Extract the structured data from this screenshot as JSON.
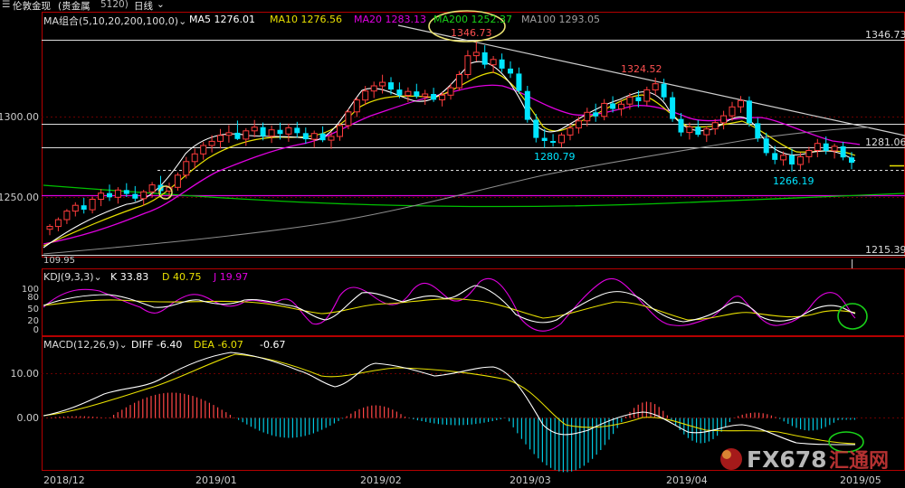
{
  "topbar": {
    "title": "伦敦金现",
    "market": "(贵金属",
    "code": "5120)",
    "period": "日线"
  },
  "main_legend": {
    "indicator": "MA组合(5,10,20,200,100,0)",
    "ma5": "MA5 1276.01",
    "ma10": "MA10 1276.56",
    "ma20": "MA20 1283.13",
    "ma200": "MA200 1252.37",
    "ma100": "MA100 1293.05"
  },
  "kdj_legend": {
    "indicator": "KDJ(9,3,3)",
    "k": "K 33.83",
    "d": "D 40.75",
    "j": "J 19.97"
  },
  "macd_legend": {
    "indicator": "MACD(12,26,9)",
    "diff": "DIFF -6.40",
    "dea": "DEA -6.07",
    "macd": "-0.67"
  },
  "annotations": {
    "high1": "1346.73",
    "high2": "1324.52",
    "low1": "1280.79",
    "low2": "1266.19",
    "start": "109.95"
  },
  "right_labels": {
    "r1": "1346.73",
    "r2": "1281.06",
    "r3": "1215.39"
  },
  "watermark": "FX678",
  "watermark_sub": "汇通网",
  "colors": {
    "up": "#ff3c3c",
    "down": "#00e5ff",
    "ma5": "#ffffff",
    "ma10": "#e8e000",
    "ma20": "#e000e0",
    "ma200": "#00c000",
    "ma100": "#a0a0a0",
    "grid": "#6a0000",
    "axis": "#b40000",
    "highlight": "#e8e070",
    "circle_green": "#19d219"
  },
  "chart_data": [
    {
      "type": "candlestick",
      "x_range": [
        "2018/12",
        "2019/05"
      ],
      "x_ticks": [
        "2018/12",
        "2019/01",
        "2019/02",
        "2019/03",
        "2019/04",
        "2019/05"
      ],
      "y_ticks": [
        1250,
        1300
      ],
      "y_tick_labels": [
        "1250.00",
        "1300.00"
      ],
      "ylim": [
        1213,
        1357
      ],
      "reference_lines": [
        1346.73,
        1281.06,
        1215.39
      ],
      "ohlc": [
        [
          1230.2,
          1233.4,
          1226.5,
          1232.0
        ],
        [
          1232.0,
          1237.6,
          1229.0,
          1236.2
        ],
        [
          1236.2,
          1242.8,
          1233.5,
          1241.5
        ],
        [
          1241.5,
          1247.0,
          1238.2,
          1245.1
        ],
        [
          1245.1,
          1249.8,
          1240.0,
          1242.4
        ],
        [
          1242.4,
          1250.5,
          1240.1,
          1248.9
        ],
        [
          1248.9,
          1255.3,
          1244.6,
          1252.7
        ],
        [
          1252.7,
          1258.0,
          1247.8,
          1250.1
        ],
        [
          1250.1,
          1256.4,
          1246.2,
          1254.6
        ],
        [
          1254.6,
          1258.9,
          1250.3,
          1252.2
        ],
        [
          1252.2,
          1257.1,
          1247.5,
          1249.3
        ],
        [
          1249.3,
          1254.8,
          1245.0,
          1253.5
        ],
        [
          1253.5,
          1259.6,
          1249.9,
          1257.8
        ],
        [
          1257.8,
          1263.4,
          1252.1,
          1254.0
        ],
        [
          1254.0,
          1259.2,
          1249.6,
          1256.3
        ],
        [
          1256.3,
          1265.5,
          1254.2,
          1263.9
        ],
        [
          1263.9,
          1275.2,
          1261.8,
          1272.3
        ],
        [
          1272.3,
          1280.4,
          1268.0,
          1277.1
        ],
        [
          1277.1,
          1284.6,
          1273.5,
          1282.3
        ],
        [
          1282.3,
          1288.7,
          1278.0,
          1284.9
        ],
        [
          1284.9,
          1292.5,
          1280.5,
          1288.6
        ],
        [
          1288.6,
          1295.0,
          1284.1,
          1290.2
        ],
        [
          1290.2,
          1297.8,
          1285.7,
          1286.3
        ],
        [
          1286.3,
          1293.1,
          1282.0,
          1291.4
        ],
        [
          1291.4,
          1298.2,
          1287.4,
          1293.7
        ],
        [
          1293.7,
          1296.6,
          1285.5,
          1288.1
        ],
        [
          1288.1,
          1294.8,
          1283.9,
          1292.0
        ],
        [
          1292.0,
          1296.5,
          1286.0,
          1289.4
        ],
        [
          1289.4,
          1295.9,
          1284.6,
          1293.3
        ],
        [
          1293.3,
          1297.0,
          1287.2,
          1290.0
        ],
        [
          1290.0,
          1293.5,
          1283.3,
          1286.2
        ],
        [
          1286.2,
          1291.6,
          1281.0,
          1289.8
        ],
        [
          1289.8,
          1294.2,
          1284.4,
          1285.6
        ],
        [
          1285.6,
          1290.9,
          1280.3,
          1287.9
        ],
        [
          1287.9,
          1296.3,
          1285.2,
          1294.7
        ],
        [
          1294.7,
          1305.1,
          1292.4,
          1303.2
        ],
        [
          1303.2,
          1312.4,
          1300.0,
          1310.6
        ],
        [
          1310.6,
          1319.3,
          1307.5,
          1316.2
        ],
        [
          1316.2,
          1322.0,
          1311.8,
          1319.4
        ],
        [
          1319.4,
          1326.3,
          1314.6,
          1321.6
        ],
        [
          1321.6,
          1324.8,
          1314.0,
          1317.1
        ],
        [
          1317.1,
          1321.5,
          1311.7,
          1313.5
        ],
        [
          1313.5,
          1318.4,
          1309.3,
          1315.9
        ],
        [
          1315.9,
          1320.7,
          1311.5,
          1312.8
        ],
        [
          1312.8,
          1316.9,
          1307.6,
          1314.3
        ],
        [
          1314.3,
          1318.2,
          1309.4,
          1310.7
        ],
        [
          1310.7,
          1315.5,
          1306.6,
          1313.6
        ],
        [
          1313.6,
          1320.8,
          1310.8,
          1318.2
        ],
        [
          1318.2,
          1328.6,
          1316.3,
          1326.4
        ],
        [
          1326.4,
          1341.5,
          1324.0,
          1338.1
        ],
        [
          1338.1,
          1346.73,
          1334.5,
          1340.2
        ],
        [
          1340.2,
          1344.6,
          1330.2,
          1332.5
        ],
        [
          1332.5,
          1337.9,
          1327.4,
          1335.8
        ],
        [
          1335.8,
          1339.5,
          1328.0,
          1330.1
        ],
        [
          1330.1,
          1334.6,
          1324.3,
          1327.0
        ],
        [
          1327.0,
          1330.8,
          1314.5,
          1316.2
        ],
        [
          1316.2,
          1319.4,
          1296.5,
          1298.3
        ],
        [
          1298.3,
          1301.9,
          1284.2,
          1287.0
        ],
        [
          1287.0,
          1292.5,
          1280.79,
          1285.1
        ],
        [
          1285.1,
          1289.4,
          1281.6,
          1284.0
        ],
        [
          1284.0,
          1290.3,
          1281.0,
          1288.8
        ],
        [
          1288.8,
          1295.6,
          1285.5,
          1293.2
        ],
        [
          1293.2,
          1300.4,
          1289.7,
          1297.6
        ],
        [
          1297.6,
          1305.8,
          1294.1,
          1302.9
        ],
        [
          1302.9,
          1308.3,
          1297.0,
          1300.4
        ],
        [
          1300.4,
          1311.2,
          1298.0,
          1308.5
        ],
        [
          1308.5,
          1312.9,
          1302.8,
          1305.1
        ],
        [
          1305.1,
          1310.6,
          1300.7,
          1308.0
        ],
        [
          1308.0,
          1314.9,
          1304.6,
          1312.4
        ],
        [
          1312.4,
          1316.5,
          1306.0,
          1309.8
        ],
        [
          1309.8,
          1318.9,
          1307.1,
          1316.9
        ],
        [
          1316.9,
          1324.52,
          1313.6,
          1320.7
        ],
        [
          1320.7,
          1323.8,
          1310.2,
          1312.3
        ],
        [
          1312.3,
          1315.6,
          1297.0,
          1298.8
        ],
        [
          1298.8,
          1302.5,
          1288.1,
          1290.4
        ],
        [
          1290.4,
          1296.6,
          1286.0,
          1293.9
        ],
        [
          1293.9,
          1298.1,
          1287.7,
          1289.0
        ],
        [
          1289.0,
          1294.3,
          1284.5,
          1292.6
        ],
        [
          1292.6,
          1298.7,
          1289.0,
          1296.5
        ],
        [
          1296.5,
          1303.9,
          1292.3,
          1300.8
        ],
        [
          1300.8,
          1309.4,
          1297.7,
          1306.3
        ],
        [
          1306.3,
          1313.1,
          1302.6,
          1310.2
        ],
        [
          1310.2,
          1312.8,
          1294.0,
          1296.1
        ],
        [
          1296.1,
          1299.5,
          1284.6,
          1286.7
        ],
        [
          1286.7,
          1290.2,
          1275.9,
          1277.6
        ],
        [
          1277.6,
          1282.1,
          1270.7,
          1273.4
        ],
        [
          1273.4,
          1278.6,
          1269.8,
          1276.2
        ],
        [
          1276.2,
          1280.3,
          1266.19,
          1270.5
        ],
        [
          1270.5,
          1277.9,
          1267.3,
          1275.3
        ],
        [
          1275.3,
          1281.5,
          1271.4,
          1279.2
        ],
        [
          1279.2,
          1286.4,
          1275.0,
          1283.6
        ],
        [
          1283.6,
          1287.9,
          1276.8,
          1279.0
        ],
        [
          1279.0,
          1283.5,
          1274.2,
          1281.8
        ],
        [
          1281.8,
          1284.6,
          1273.1,
          1274.9
        ],
        [
          1274.9,
          1278.2,
          1267.5,
          1271.6
        ]
      ]
    },
    {
      "type": "line",
      "name": "KDJ(9,3,3)",
      "y_ticks": [
        0,
        20,
        50,
        80,
        100
      ],
      "ylim": [
        -10,
        110
      ],
      "series_names": [
        "K",
        "D",
        "J"
      ]
    },
    {
      "type": "bar+line",
      "name": "MACD(12,26,9)",
      "y_ticks": [
        0,
        10
      ],
      "y_tick_labels": [
        "0.00",
        "10.00"
      ],
      "ylim": [
        -11.5,
        14.5
      ],
      "series_names": [
        "DIFF",
        "DEA",
        "MACD"
      ]
    }
  ]
}
